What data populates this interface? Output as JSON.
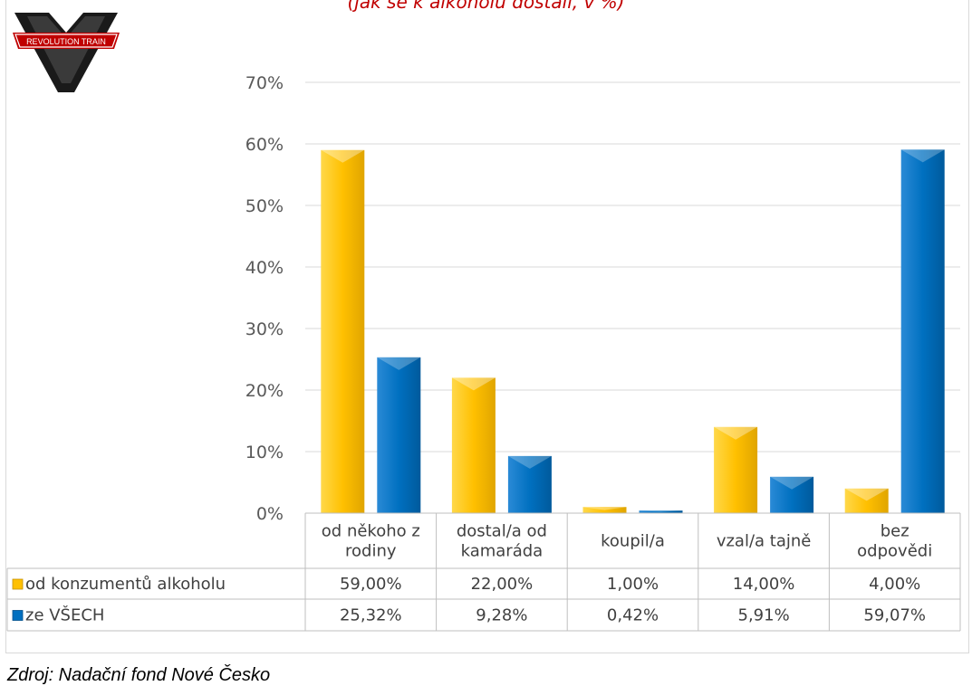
{
  "page": {
    "title_fragment": "(jak se k alkoholu dostali, v %)",
    "logo_text": "REVOLUTION TRAIN",
    "source": "Zdroj: Nadační fond Nové Česko"
  },
  "chart_data": {
    "type": "bar",
    "title": "",
    "xlabel": "",
    "ylabel": "",
    "ylim": [
      0,
      70
    ],
    "yticks": [
      0,
      10,
      20,
      30,
      40,
      50,
      60,
      70
    ],
    "ytick_labels": [
      "0%",
      "10%",
      "20%",
      "30%",
      "40%",
      "50%",
      "60%",
      "70%"
    ],
    "grid": true,
    "legend_placement": "data-table",
    "categories": [
      [
        "od někoho z",
        "rodiny"
      ],
      [
        "dostal/a od",
        "kamaráda"
      ],
      [
        "koupil/a"
      ],
      [
        "vzal/a tajně"
      ],
      [
        "bez",
        "odpovědi"
      ]
    ],
    "series": [
      {
        "name": "od konzumentů alkoholu",
        "color": "#ffc000",
        "values": [
          59.0,
          22.0,
          1.0,
          14.0,
          4.0
        ],
        "value_labels": [
          "59,00%",
          "22,00%",
          "1,00%",
          "14,00%",
          "4,00%"
        ]
      },
      {
        "name": "ze VŠECH",
        "color": "#0070c0",
        "values": [
          25.32,
          9.28,
          0.42,
          5.91,
          59.07
        ],
        "value_labels": [
          "25,32%",
          "9,28%",
          "0,42%",
          "5,91%",
          "59,07%"
        ]
      }
    ]
  }
}
